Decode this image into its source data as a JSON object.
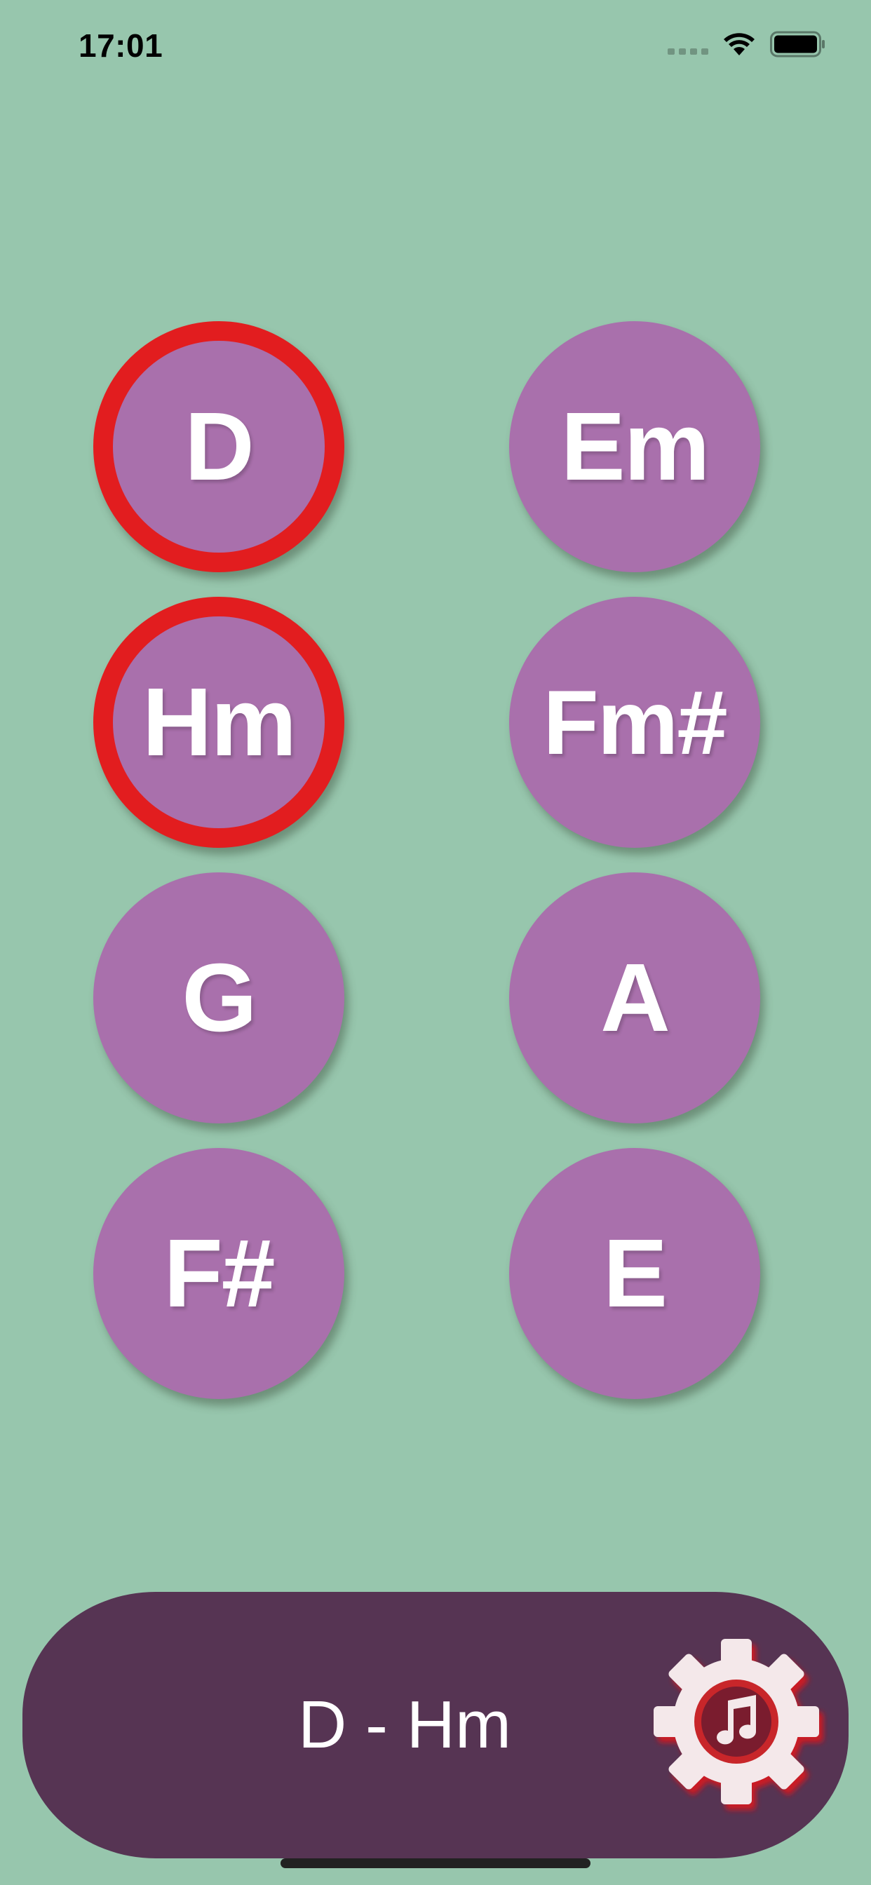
{
  "status_bar": {
    "time": "17:01"
  },
  "chords": [
    {
      "label": "D",
      "selected": true
    },
    {
      "label": "Em",
      "selected": false
    },
    {
      "label": "Hm",
      "selected": true
    },
    {
      "label": "Fm#",
      "selected": false
    },
    {
      "label": "G",
      "selected": false
    },
    {
      "label": "A",
      "selected": false
    },
    {
      "label": "F#",
      "selected": false
    },
    {
      "label": "E",
      "selected": false
    }
  ],
  "progression": {
    "text": "D - Hm"
  },
  "icons": {
    "settings": "gear-music-note-icon",
    "wifi": "wifi-icon",
    "battery": "battery-icon",
    "signal": "cellular-signal-icon"
  },
  "colors": {
    "background": "#97c6ad",
    "chord_button": "#a970ac",
    "selected_ring": "#e21d1f",
    "bottom_bar": "#563453"
  }
}
